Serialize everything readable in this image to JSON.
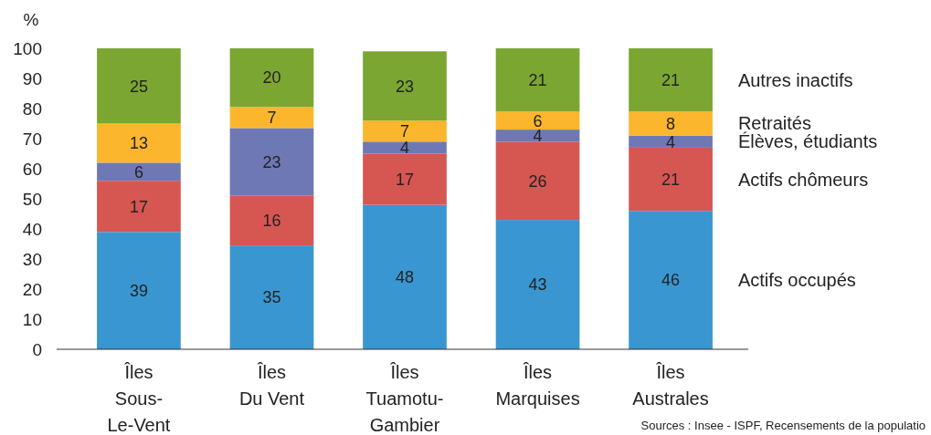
{
  "chart_data": {
    "type": "bar",
    "stacked": true,
    "ylabel": "%",
    "categories": [
      "Îles Sous-Le-Vent",
      "Îles Du Vent",
      "Îles Tuamotu-Gambier",
      "Îles Marquises",
      "Îles Australes"
    ],
    "series": [
      {
        "name": "Actifs occupés",
        "color": "#3a96d0",
        "values": [
          39,
          34.5,
          48,
          43,
          46
        ],
        "value_labels": [
          "39",
          "35",
          "48",
          "43",
          "46"
        ]
      },
      {
        "name": "Actifs chômeurs",
        "color": "#d65652",
        "values": [
          17,
          16.5,
          17,
          26,
          21
        ],
        "value_labels": [
          "17",
          "16",
          "17",
          "26",
          "21"
        ]
      },
      {
        "name": "Élèves, étudiants",
        "color": "#6e78b4",
        "values": [
          6,
          22.5,
          4,
          4,
          4
        ],
        "value_labels": [
          "6",
          "23",
          "4",
          "4",
          "4"
        ]
      },
      {
        "name": "Retraités",
        "color": "#fbb62d",
        "values": [
          13,
          7,
          7,
          6,
          8
        ],
        "value_labels": [
          "13",
          "7",
          "7",
          "6",
          "8"
        ]
      },
      {
        "name": "Autres inactifs",
        "color": "#7ba632",
        "values": [
          25,
          19.5,
          23,
          21,
          21
        ],
        "value_labels": [
          "25",
          "20",
          "23",
          "21",
          "21"
        ]
      }
    ],
    "ylim": [
      0,
      100
    ],
    "yticks": [
      0,
      10,
      20,
      30,
      40,
      50,
      60,
      70,
      80,
      90,
      100
    ],
    "legend": "right",
    "annotations": [
      "Sources : Insee - ISPF, Recensements de la populatio"
    ]
  }
}
